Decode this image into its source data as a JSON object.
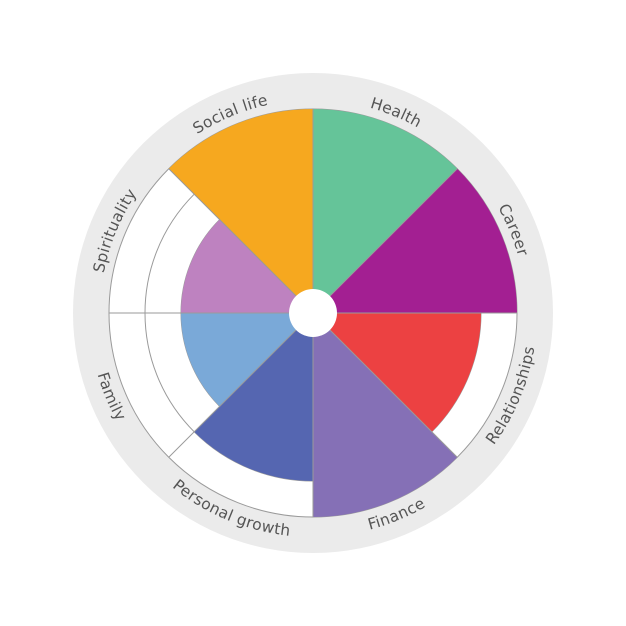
{
  "chart_data": {
    "type": "polar-area",
    "levels": 5,
    "segments": [
      {
        "label": "Health",
        "level": 5,
        "color": "#65c499"
      },
      {
        "label": "Career",
        "level": 5,
        "color": "#a31f92"
      },
      {
        "label": "Relationships",
        "level": 4,
        "color": "#ec4142"
      },
      {
        "label": "Finance",
        "level": 5,
        "color": "#8570b6"
      },
      {
        "label": "Personal growth",
        "level": 4,
        "color": "#5566b1"
      },
      {
        "label": "Family",
        "level": 3,
        "color": "#7aa9d8"
      },
      {
        "label": "Spirituality",
        "level": 3,
        "color": "#be82c0"
      },
      {
        "label": "Social life",
        "level": 5,
        "color": "#f6a81f"
      }
    ],
    "colors": {
      "outer_band": "#ebebeb",
      "grid": "#9a9a9a",
      "background": "#ffffff",
      "text": "#555555"
    }
  }
}
